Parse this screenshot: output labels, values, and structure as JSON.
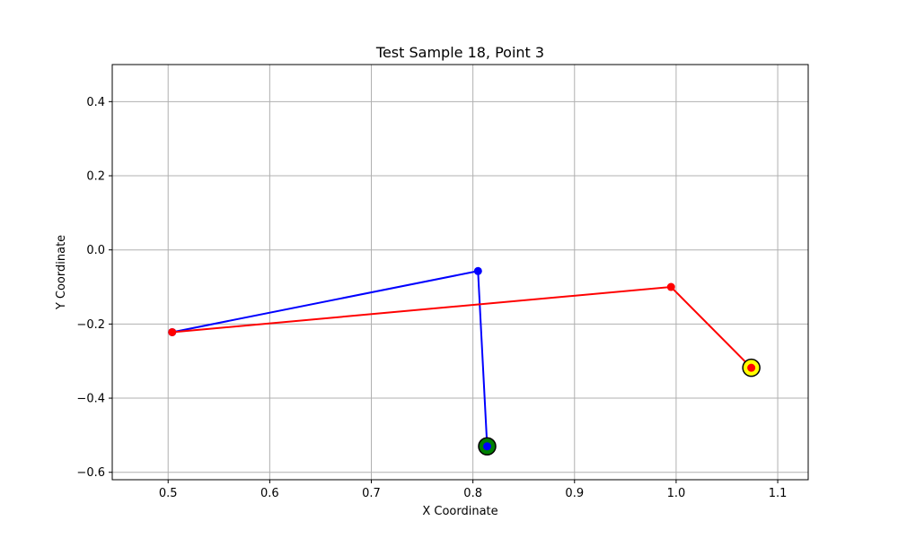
{
  "chart_data": {
    "type": "line",
    "title": "Test Sample 18, Point 3",
    "xlabel": "X Coordinate",
    "ylabel": "Y Coordinate",
    "xlim": [
      0.445,
      1.13
    ],
    "ylim": [
      -0.62,
      0.5
    ],
    "xticks": [
      0.5,
      0.6,
      0.7,
      0.8,
      0.9,
      1.0,
      1.1
    ],
    "xtick_labels": [
      "0.5",
      "0.6",
      "0.7",
      "0.8",
      "0.9",
      "1.0",
      "1.1"
    ],
    "yticks": [
      -0.6,
      -0.4,
      -0.2,
      0.0,
      0.2,
      0.4
    ],
    "ytick_labels": [
      "−0.6",
      "−0.4",
      "−0.2",
      "0.0",
      "0.2",
      "0.4"
    ],
    "grid": true,
    "series": [
      {
        "color": "#0000ff",
        "x": [
          0.504,
          0.805,
          0.814
        ],
        "y": [
          -0.222,
          -0.057,
          -0.53
        ]
      },
      {
        "color": "#ff0000",
        "x": [
          0.504,
          0.995,
          1.074
        ],
        "y": [
          -0.222,
          -0.1,
          -0.318
        ]
      }
    ],
    "highlights": [
      {
        "color": "#008000",
        "x": 0.814,
        "y": -0.53
      },
      {
        "color": "#ffff00",
        "x": 1.074,
        "y": -0.318
      }
    ]
  }
}
